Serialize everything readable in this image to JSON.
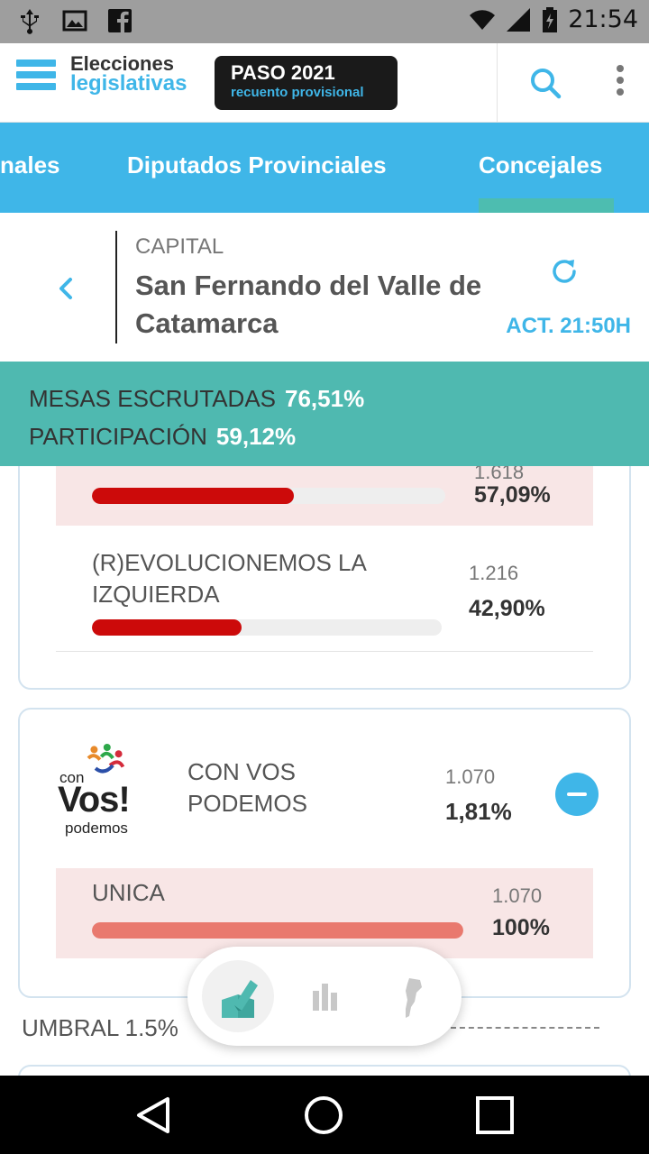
{
  "status_bar": {
    "time": "21:54",
    "left_icons": [
      "usb-icon",
      "image-icon",
      "facebook-icon"
    ],
    "right_icons": [
      "wifi-icon",
      "signal-icon",
      "battery-icon"
    ]
  },
  "header": {
    "logo_line1": "Elecciones",
    "logo_line2": "legislativas",
    "badge_title": "PASO 2021",
    "badge_subtitle": "recuento provisional"
  },
  "tabs": [
    {
      "label": "nales",
      "active": false
    },
    {
      "label": "Diputados Provinciales",
      "active": false
    },
    {
      "label": "Concejales",
      "active": true
    }
  ],
  "location": {
    "province": "CAPITAL",
    "city": "San Fernando del Valle de Catamarca",
    "updated": "ACT. 21:50H"
  },
  "stats": {
    "mesas_label": "MESAS ESCRUTADAS",
    "mesas_value": "76,51%",
    "participacion_label": "PARTICIPACIÓN",
    "participacion_value": "59,12%"
  },
  "card1": {
    "rows": [
      {
        "name": "",
        "count": "1.618",
        "pct": "57,09%",
        "fill": 0.5709,
        "color": "#cc0a0a"
      },
      {
        "name": "(R)EVOLUCIONEMOS LA IZQUIERDA",
        "count": "1.216",
        "pct": "42,90%",
        "fill": 0.429,
        "color": "#cc0a0a"
      }
    ]
  },
  "card2": {
    "logo": {
      "small": "con",
      "big": "Vos!",
      "sub": "podemos"
    },
    "party_name": "CON VOS PODEMOS",
    "party_count": "1.070",
    "party_pct": "1,81%",
    "rows": [
      {
        "name": "UNICA",
        "count": "1.070",
        "pct": "100%",
        "fill": 1.0,
        "color": "#e9796e"
      }
    ]
  },
  "umbral": "UMBRAL 1.5%",
  "colors": {
    "accent": "#3fb6e8",
    "teal": "#4fb9b0",
    "red": "#cc0a0a",
    "salmon": "#e9796e"
  }
}
